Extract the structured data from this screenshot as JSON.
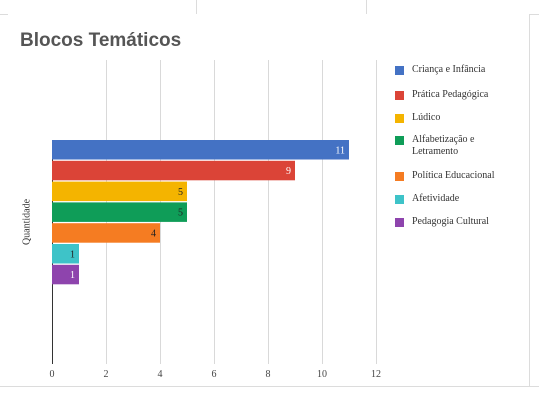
{
  "chart_data": {
    "type": "bar",
    "orientation": "horizontal",
    "title": "Blocos Temáticos",
    "ylabel": "Quantidade",
    "xlim": [
      0,
      12
    ],
    "xticks": [
      0,
      2,
      4,
      6,
      8,
      10,
      12
    ],
    "grid": true,
    "legend_position": "right",
    "series": [
      {
        "name": "Criança e Infância",
        "value": 11,
        "color": "#4472c4"
      },
      {
        "name": "Prática Pedagógica",
        "value": 9,
        "color": "#db4437"
      },
      {
        "name": "Lúdico",
        "value": 5,
        "color": "#f4b400"
      },
      {
        "name": "Alfabetização e Letramento",
        "value": 5,
        "color": "#0f9d58"
      },
      {
        "name": "Política Educacional",
        "value": 4,
        "color": "#f57c22"
      },
      {
        "name": "Afetividade",
        "value": 1,
        "color": "#3ec3c8"
      },
      {
        "name": "Pedagogia Cultural",
        "value": 1,
        "color": "#8e44ad"
      }
    ]
  }
}
